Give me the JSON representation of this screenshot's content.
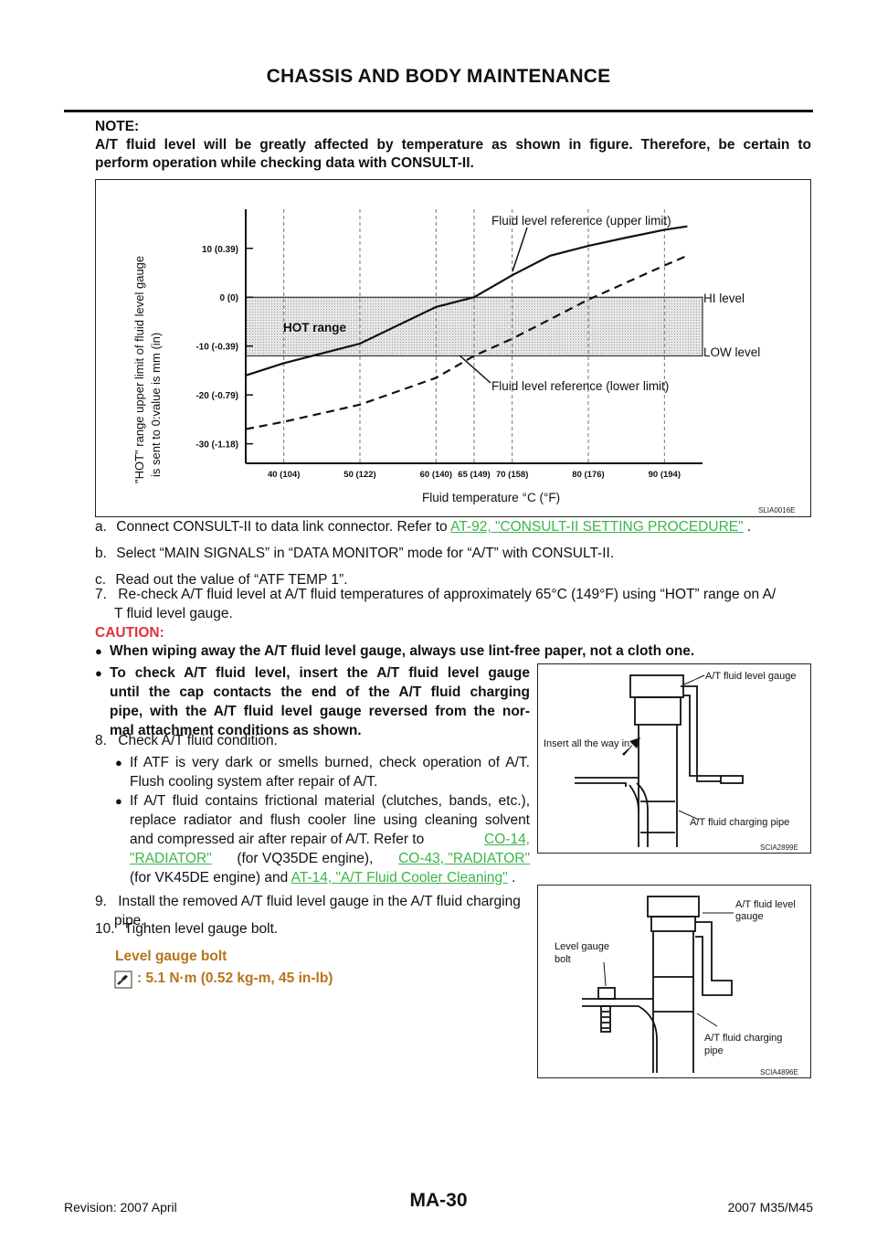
{
  "header": {
    "title": "CHASSIS AND BODY MAINTENANCE"
  },
  "note": {
    "label": "NOTE:",
    "line1": "A/T fluid level will be greatly affected by temperature as shown in figure. Therefore, be certain to",
    "line2": "perform operation while checking data with CONSULT-II."
  },
  "chart_figure": {
    "code": "SLIA0016E",
    "ylabel_line1": "\"HOT\" range upper limit of fluid level gauge",
    "ylabel_line2": "is sent to 0:value is mm (in)",
    "xlabel": "Fluid temperature °C (°F)",
    "hot_range_label": "HOT range",
    "hi_level_label": "HI level",
    "low_level_label": "LOW level",
    "upper_ref_label": "Fluid level reference (upper limit)",
    "lower_ref_label": "Fluid level reference (lower limit)"
  },
  "chart_data": {
    "type": "line",
    "xlabel": "Fluid temperature °C (°F)",
    "ylabel": "\"HOT\" range upper limit of fluid level gauge is sent to 0:value is mm (in)",
    "x_ticks": [
      40,
      50,
      60,
      65,
      70,
      80,
      90
    ],
    "x_tick_labels": [
      "40 (104)",
      "50 (122)",
      "60 (140)",
      "65 (149)",
      "70 (158)",
      "80 (176)",
      "90 (194)"
    ],
    "y_ticks": [
      10,
      0,
      -10,
      -20,
      -30
    ],
    "y_tick_labels": [
      "10 (0.39)",
      "0 (0)",
      "-10 (-0.39)",
      "-20 (-0.79)",
      "-30 (-1.18)"
    ],
    "xlim": [
      35,
      95
    ],
    "ylim": [
      -34,
      18
    ],
    "hot_band": [
      -12,
      0
    ],
    "grid": "vertical-dashed",
    "series": [
      {
        "name": "Fluid level reference (upper limit)",
        "style": "solid",
        "x": [
          35,
          40,
          50,
          60,
          65,
          70,
          75,
          80,
          85,
          90,
          93
        ],
        "y": [
          -16,
          -13.5,
          -9.5,
          -2,
          0,
          4.5,
          8.5,
          10.5,
          12.2,
          13.8,
          14.5
        ]
      },
      {
        "name": "Fluid level reference (lower limit)",
        "style": "dashed",
        "x": [
          35,
          40,
          50,
          60,
          65,
          70,
          75,
          80,
          85,
          90,
          93
        ],
        "y": [
          -27,
          -25.5,
          -22,
          -16.5,
          -12,
          -8.5,
          -4.5,
          -0.5,
          3,
          6.5,
          8.5
        ]
      }
    ]
  },
  "steps": {
    "a_letter": "a.",
    "a_text": "Connect CONSULT-II to data link connector. Refer to",
    "a_link": "AT-92, \"CONSULT-II SETTING PROCEDURE\"",
    "a_end": ".",
    "b_letter": "b.",
    "b_text": "Select “MAIN SIGNALS” in “DATA MONITOR” mode for “A/T” with CONSULT-II.",
    "c_letter": "c.",
    "c_text": "Read out the value of “ATF TEMP 1”.",
    "s7_num": "7.",
    "s7_line1": "Re-check A/T fluid level at A/T fluid temperatures of approximately 65°C (149°F) using “HOT” range on A/",
    "s7_line2": "T fluid level gauge.",
    "caution_label": "CAUTION:",
    "caution_1": "When wiping away the A/T fluid level gauge, always use lint-free paper, not a cloth one.",
    "caution_2_l1": "To check A/T fluid level, insert the A/T fluid level gauge",
    "caution_2_l2": "until the cap contacts the end of the A/T fluid charging",
    "caution_2_l3": "pipe, with the A/T fluid level gauge reversed from the nor-",
    "caution_2_l4": "mal attachment conditions as shown.",
    "s8_num": "8.",
    "s8_text": "Check A/T fluid condition.",
    "s8_b1_l1": "If ATF is very dark or smells burned, check operation of A/T.",
    "s8_b1_l2": "Flush cooling system after repair of A/T.",
    "s8_b2_l1": "If A/T fluid contains frictional material (clutches, bands, etc.),",
    "s8_b2_l2": "replace radiator and flush cooler line using cleaning solvent",
    "s8_b2_l3": "and compressed air after repair of A/T. Refer to",
    "s8_b2_link1a": "CO-14,",
    "s8_b2_link1b": "\"RADIATOR\"",
    "s8_b2_mid": "(for VQ35DE engine),",
    "s8_b2_link2": "CO-43, \"RADIATOR\"",
    "s8_b2_l5a": "(for VK45DE engine) and",
    "s8_b2_link3": "AT-14, \"A/T Fluid Cooler Cleaning\"",
    "s8_b2_end": ".",
    "s9_num": "9.",
    "s9_line1": "Install the removed A/T fluid level gauge in the A/T fluid charging",
    "s9_line2": "pipe.",
    "s10_num": "10.",
    "s10_text": "Tighten level gauge bolt."
  },
  "spec": {
    "label": "Level gauge bolt",
    "value": ": 5.1 N·m (0.52 kg-m, 45 in-lb)",
    "icon": "torque-wrench-icon"
  },
  "figure2": {
    "code": "SCIA2899E",
    "label_gauge": "A/T fluid level gauge",
    "label_insert": "Insert all the way in.",
    "label_pipe": "A/T fluid charging pipe"
  },
  "figure3": {
    "code": "SCIA4896E",
    "label_gauge_l1": "A/T fluid level",
    "label_gauge_l2": "gauge",
    "label_bolt_l1": "Level gauge",
    "label_bolt_l2": "bolt",
    "label_pipe_l1": "A/T fluid charging",
    "label_pipe_l2": "pipe"
  },
  "footer": {
    "revision": "Revision: 2007 April",
    "page": "MA-30",
    "model": "2007 M35/M45"
  },
  "colors": {
    "link": "#3bb54a",
    "caution": "#e0313d",
    "spec": "#b5751b",
    "band": "#d8d8d8"
  }
}
